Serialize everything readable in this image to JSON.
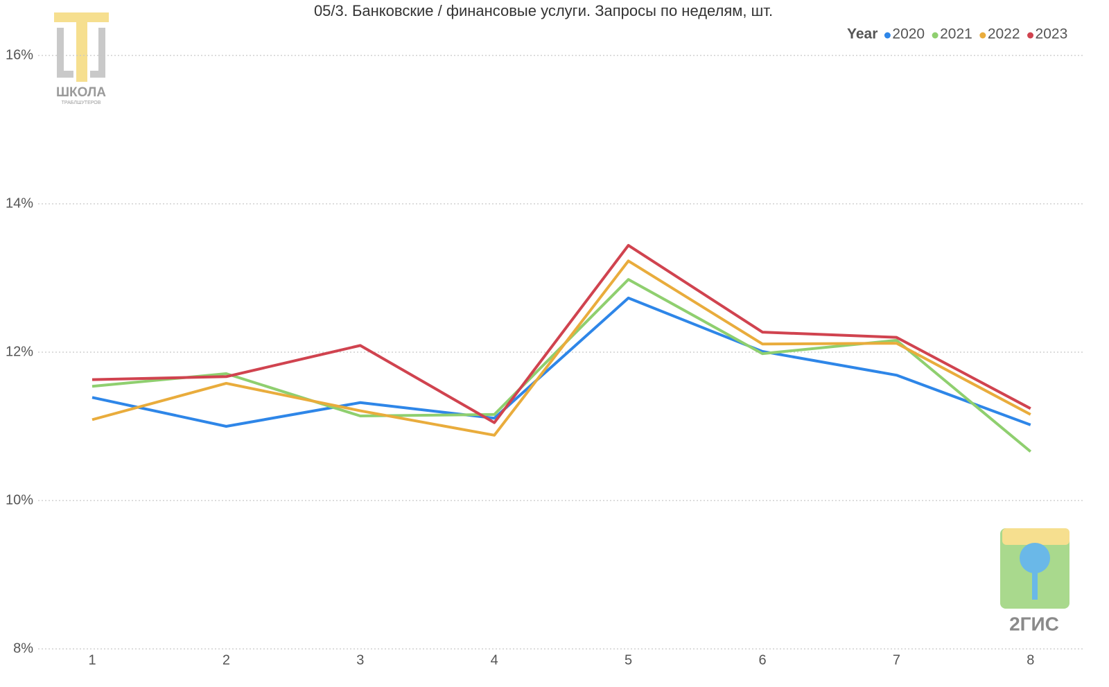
{
  "chart_data": {
    "type": "line",
    "title": "05/3. Банковские / финансовые услуги. Запросы по неделям, шт.",
    "legend_title": "Year",
    "legend_position": "top-right",
    "categories": [
      "1",
      "2",
      "3",
      "4",
      "5",
      "6",
      "7",
      "8"
    ],
    "series": [
      {
        "name": "2020",
        "color": "#2e86e8",
        "values": [
          11.39,
          11.0,
          11.32,
          11.11,
          12.73,
          12.01,
          11.69,
          11.02
        ]
      },
      {
        "name": "2021",
        "color": "#8fcf6f",
        "values": [
          11.54,
          11.71,
          11.14,
          11.16,
          12.98,
          11.98,
          12.16,
          10.66
        ]
      },
      {
        "name": "2022",
        "color": "#e9ac3c",
        "values": [
          11.09,
          11.58,
          11.21,
          10.88,
          13.23,
          12.11,
          12.12,
          11.16
        ]
      },
      {
        "name": "2023",
        "color": "#d0434f",
        "values": [
          11.63,
          11.67,
          12.09,
          11.05,
          13.44,
          12.27,
          12.2,
          11.24
        ]
      }
    ],
    "ylim": [
      8,
      16
    ],
    "yticks": [
      {
        "value": 8,
        "label": "8%"
      },
      {
        "value": 10,
        "label": "10%"
      },
      {
        "value": 12,
        "label": "12%"
      },
      {
        "value": 14,
        "label": "14%"
      },
      {
        "value": 16,
        "label": "16%"
      }
    ],
    "grid": true,
    "watermarks": [
      "ШКОЛА",
      "ТРАБЛШУТЕРОВ",
      "2ГИС"
    ]
  }
}
